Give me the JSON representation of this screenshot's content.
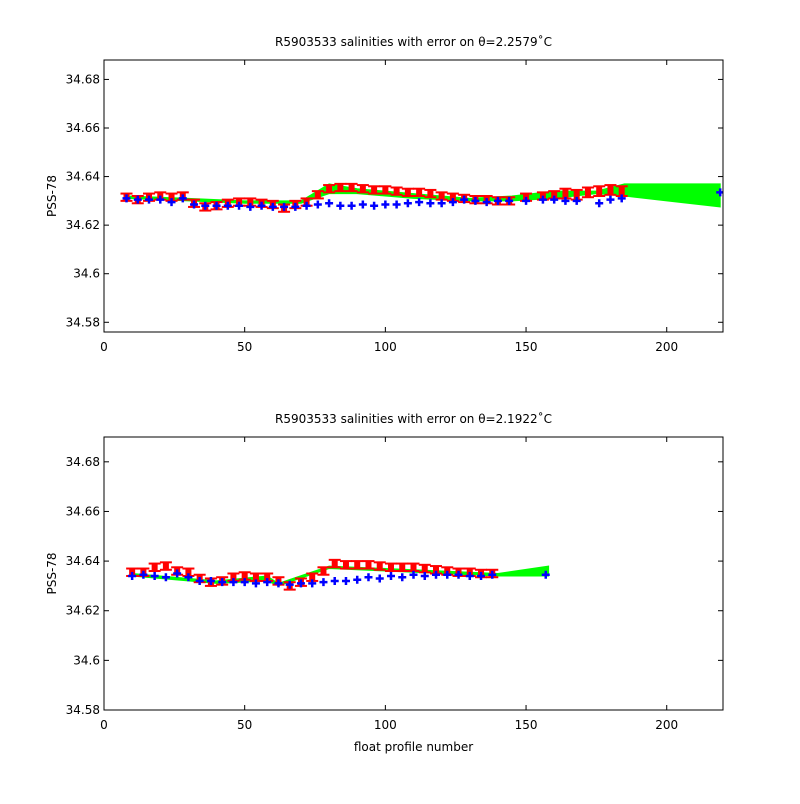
{
  "figure": {
    "xlabel_bottom": "float profile number"
  },
  "chart_data": [
    {
      "type": "line",
      "title": "R5903533 salinities with error on θ=2.2579˚C",
      "xlabel": "",
      "ylabel": "PSS-78",
      "xlim": [
        0,
        220
      ],
      "ylim": [
        34.576,
        34.688
      ],
      "xticks": [
        0,
        50,
        100,
        150,
        200
      ],
      "yticks": [
        34.58,
        34.6,
        34.62,
        34.64,
        34.66,
        34.68
      ],
      "xtick_labels": [
        "0",
        "50",
        "100",
        "150",
        "200"
      ],
      "ytick_labels": [
        "34.58",
        "34.6",
        "34.62",
        "34.64",
        "34.66",
        "34.68"
      ],
      "grid": false,
      "colors": {
        "mapped_band": "#00ff00",
        "float_errorbars": "#ff0000",
        "float_points": "#0000ff"
      },
      "series": [
        {
          "x": [
            8,
            12,
            16,
            20,
            24,
            28,
            32,
            36,
            40,
            44,
            48,
            52,
            56,
            60,
            64,
            68,
            72,
            76,
            80,
            84,
            88,
            92,
            96,
            100,
            104,
            108,
            112,
            116,
            120,
            124,
            128,
            132,
            136,
            140,
            144,
            150,
            156,
            160,
            164,
            168,
            172,
            176,
            180,
            184
          ],
          "values": [
            34.6315,
            34.6305,
            34.6315,
            34.632,
            34.6315,
            34.632,
            34.629,
            34.6275,
            34.628,
            34.629,
            34.6295,
            34.6295,
            34.629,
            34.6285,
            34.627,
            34.6285,
            34.6295,
            34.6325,
            34.635,
            34.6355,
            34.6355,
            34.635,
            34.6345,
            34.6345,
            34.634,
            34.6335,
            34.6335,
            34.633,
            34.632,
            34.6315,
            34.631,
            34.6305,
            34.6305,
            34.63,
            34.63,
            34.6315,
            34.632,
            34.6325,
            34.633,
            34.6325,
            34.6335,
            34.634,
            34.6345,
            34.634
          ],
          "error": [
            0.0015,
            0.0015,
            0.0015,
            0.0015,
            0.0015,
            0.0015,
            0.0015,
            0.0015,
            0.0015,
            0.0015,
            0.0015,
            0.0015,
            0.0015,
            0.0015,
            0.0015,
            0.0015,
            0.0015,
            0.0015,
            0.0015,
            0.0015,
            0.0015,
            0.0015,
            0.0015,
            0.0015,
            0.0015,
            0.0015,
            0.0015,
            0.0015,
            0.0015,
            0.0015,
            0.0015,
            0.0015,
            0.0015,
            0.0015,
            0.0015,
            0.0015,
            0.0015,
            0.0015,
            0.002,
            0.002,
            0.002,
            0.002,
            0.002,
            0.002
          ]
        },
        {
          "x": [
            8,
            12,
            16,
            20,
            24,
            28,
            32,
            36,
            40,
            44,
            48,
            52,
            56,
            60,
            64,
            68,
            72,
            76,
            80,
            84,
            88,
            92,
            96,
            100,
            104,
            108,
            112,
            116,
            120,
            124,
            128,
            132,
            136,
            140,
            144,
            150,
            156,
            160,
            164,
            168,
            176,
            180,
            184,
            219
          ],
          "values": [
            34.631,
            34.6305,
            34.6305,
            34.6305,
            34.6295,
            34.631,
            34.6285,
            34.628,
            34.628,
            34.628,
            34.628,
            34.6275,
            34.628,
            34.6275,
            34.6275,
            34.6275,
            34.628,
            34.6285,
            34.629,
            34.628,
            34.628,
            34.6285,
            34.628,
            34.6285,
            34.6285,
            34.629,
            34.6295,
            34.629,
            34.629,
            34.6295,
            34.6305,
            34.63,
            34.6295,
            34.63,
            34.63,
            34.63,
            34.6305,
            34.6305,
            34.63,
            34.63,
            34.629,
            34.6305,
            34.631,
            34.6335
          ]
        },
        {
          "x": [
            8,
            30,
            50,
            70,
            80,
            90,
            110,
            130,
            145,
            160,
            175,
            185,
            200,
            219
          ],
          "upper": [
            34.632,
            34.631,
            34.63,
            34.63,
            34.637,
            34.635,
            34.633,
            34.631,
            34.632,
            34.634,
            34.634,
            34.637,
            34.637,
            34.637
          ],
          "lower": [
            34.631,
            34.63,
            34.629,
            34.629,
            34.633,
            34.633,
            34.631,
            34.63,
            34.63,
            34.631,
            34.633,
            34.632,
            34.63,
            34.6275
          ]
        }
      ]
    },
    {
      "type": "line",
      "title": "R5903533 salinities with error on θ=2.1922˚C",
      "xlabel": "float profile number",
      "ylabel": "PSS-78",
      "xlim": [
        0,
        220
      ],
      "ylim": [
        34.58,
        34.69
      ],
      "xticks": [
        0,
        50,
        100,
        150,
        200
      ],
      "yticks": [
        34.58,
        34.6,
        34.62,
        34.64,
        34.66,
        34.68
      ],
      "xtick_labels": [
        "0",
        "50",
        "100",
        "150",
        "200"
      ],
      "ytick_labels": [
        "34.58",
        "34.6",
        "34.62",
        "34.64",
        "34.66",
        "34.68"
      ],
      "grid": false,
      "colors": {
        "mapped_band": "#00ff00",
        "float_errorbars": "#ff0000",
        "float_points": "#0000ff"
      },
      "series": [
        {
          "x": [
            10,
            14,
            18,
            22,
            26,
            30,
            34,
            38,
            42,
            46,
            50,
            54,
            58,
            62,
            66,
            70,
            74,
            78,
            82,
            86,
            90,
            94,
            98,
            102,
            106,
            110,
            114,
            118,
            122,
            126,
            130,
            134,
            138
          ],
          "values": [
            34.6355,
            34.6355,
            34.6375,
            34.638,
            34.636,
            34.6355,
            34.633,
            34.6315,
            34.632,
            34.6335,
            34.634,
            34.6335,
            34.6335,
            34.632,
            34.63,
            34.6315,
            34.6335,
            34.636,
            34.639,
            34.6385,
            34.6385,
            34.6385,
            34.638,
            34.6375,
            34.6375,
            34.6375,
            34.637,
            34.6365,
            34.636,
            34.6355,
            34.6355,
            34.635,
            34.635
          ],
          "error": [
            0.0015,
            0.0015,
            0.0015,
            0.0015,
            0.0015,
            0.0015,
            0.0015,
            0.0015,
            0.0015,
            0.0015,
            0.0015,
            0.0015,
            0.0015,
            0.0015,
            0.0015,
            0.0015,
            0.0015,
            0.0015,
            0.0015,
            0.0015,
            0.0015,
            0.0015,
            0.0015,
            0.0015,
            0.0015,
            0.0015,
            0.0015,
            0.0015,
            0.0015,
            0.0015,
            0.0015,
            0.0015,
            0.0015
          ]
        },
        {
          "x": [
            10,
            14,
            18,
            22,
            26,
            30,
            34,
            38,
            42,
            46,
            50,
            54,
            58,
            62,
            66,
            70,
            74,
            78,
            82,
            86,
            90,
            94,
            98,
            102,
            106,
            110,
            114,
            118,
            122,
            126,
            130,
            134,
            138,
            157
          ],
          "values": [
            34.634,
            34.6345,
            34.634,
            34.6335,
            34.635,
            34.6335,
            34.632,
            34.632,
            34.6315,
            34.6315,
            34.6315,
            34.631,
            34.6315,
            34.631,
            34.6305,
            34.631,
            34.631,
            34.6315,
            34.632,
            34.632,
            34.6325,
            34.6335,
            34.633,
            34.634,
            34.6335,
            34.6345,
            34.634,
            34.6345,
            34.6345,
            34.6345,
            34.634,
            34.634,
            34.6345,
            34.6345
          ]
        },
        {
          "x": [
            10,
            40,
            58,
            62,
            80,
            100,
            120,
            140,
            158
          ],
          "upper": [
            34.635,
            34.632,
            34.634,
            34.631,
            34.638,
            34.637,
            34.636,
            34.635,
            34.638
          ],
          "lower": [
            34.634,
            34.631,
            34.632,
            34.63,
            34.637,
            34.636,
            34.635,
            34.634,
            34.634
          ]
        }
      ]
    }
  ]
}
